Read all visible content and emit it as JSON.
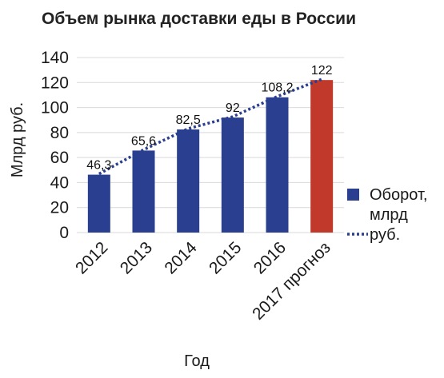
{
  "chart_data": {
    "type": "bar",
    "title": "Объем рынка доставки еды в России",
    "xlabel": "Год",
    "ylabel": "Млрд руб.",
    "ylim": [
      0,
      140
    ],
    "yticks": [
      0,
      20,
      40,
      60,
      80,
      100,
      120,
      140
    ],
    "grid": true,
    "categories": [
      "2012",
      "2013",
      "2014",
      "2015",
      "2016",
      "2017 прогноз"
    ],
    "values": [
      46.3,
      65.6,
      82.5,
      92,
      108.2,
      122
    ],
    "data_labels": [
      "46,3",
      "65,6",
      "82,5",
      "92",
      "108,2",
      "122"
    ],
    "bar_colors": [
      "#2a3f8f",
      "#2a3f8f",
      "#2a3f8f",
      "#2a3f8f",
      "#2a3f8f",
      "#c0392b"
    ],
    "trend_line": {
      "style": "dotted",
      "color": "#2a3f8f",
      "values": [
        46.3,
        65.6,
        82.5,
        92,
        108.2,
        122
      ]
    },
    "legend": {
      "placement": "right",
      "label_lines": [
        "Оборот,",
        "млрд",
        "руб."
      ]
    }
  }
}
